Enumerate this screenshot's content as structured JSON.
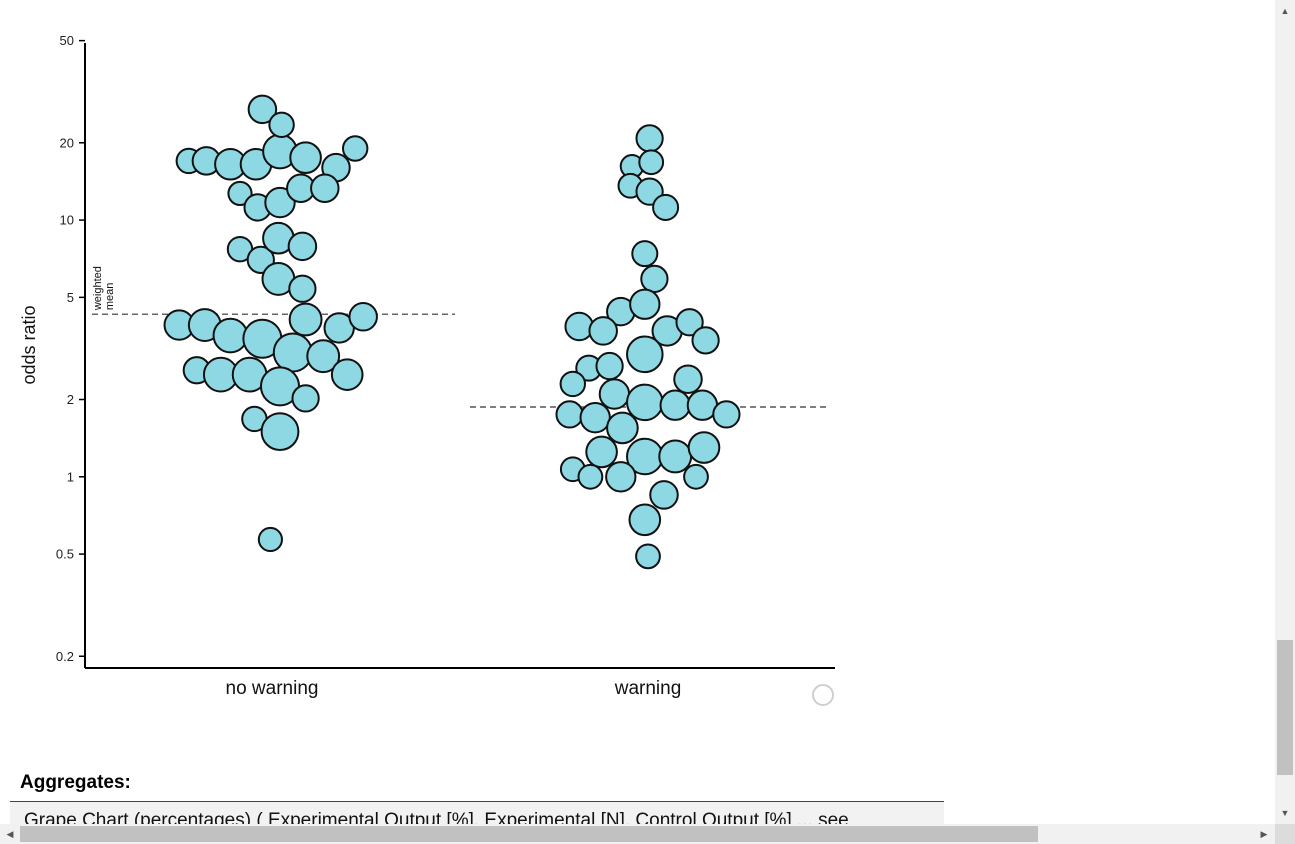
{
  "chart_data": {
    "type": "scatter",
    "subtype": "beeswarm",
    "title": "",
    "xlabel": "",
    "ylabel": "odds ratio",
    "y_scale": "log",
    "ylim": [
      0.18,
      55
    ],
    "y_ticks": [
      0.2,
      0.5,
      1,
      2,
      5,
      10,
      20,
      50
    ],
    "y_tick_labels": [
      "0.2",
      "0.5",
      "1",
      "2",
      "5",
      "10",
      "20",
      "50"
    ],
    "categories": [
      "no warning",
      "warning"
    ],
    "grid": false,
    "legend": "none",
    "point_color": "#8dd8e3",
    "point_stroke": "#111111",
    "weighted_mean_label": "weighted mean",
    "weighted_means": [
      4.3,
      1.87
    ],
    "points": [
      {
        "category": 0,
        "offset": -0.52,
        "y": 17.0,
        "weight": 2
      },
      {
        "category": 0,
        "offset": -0.41,
        "y": 17.0,
        "weight": 2.5
      },
      {
        "category": 0,
        "offset": -0.26,
        "y": 16.5,
        "weight": 3
      },
      {
        "category": 0,
        "offset": -0.1,
        "y": 16.5,
        "weight": 3
      },
      {
        "category": 0,
        "offset": 0.05,
        "y": 18.5,
        "weight": 3.5
      },
      {
        "category": 0,
        "offset": 0.21,
        "y": 17.5,
        "weight": 3
      },
      {
        "category": 0,
        "offset": 0.4,
        "y": 16.0,
        "weight": 2.5
      },
      {
        "category": 0,
        "offset": 0.52,
        "y": 19.0,
        "weight": 2
      },
      {
        "category": 0,
        "offset": -0.06,
        "y": 27.0,
        "weight": 2.5
      },
      {
        "category": 0,
        "offset": 0.06,
        "y": 23.5,
        "weight": 2
      },
      {
        "category": 0,
        "offset": -0.2,
        "y": 12.7,
        "weight": 1.8
      },
      {
        "category": 0,
        "offset": -0.09,
        "y": 11.2,
        "weight": 2.3
      },
      {
        "category": 0,
        "offset": 0.05,
        "y": 11.7,
        "weight": 2.8
      },
      {
        "category": 0,
        "offset": 0.18,
        "y": 13.3,
        "weight": 2.5
      },
      {
        "category": 0,
        "offset": 0.33,
        "y": 13.3,
        "weight": 2.5
      },
      {
        "category": 0,
        "offset": -0.2,
        "y": 7.7,
        "weight": 2
      },
      {
        "category": 0,
        "offset": -0.07,
        "y": 7.0,
        "weight": 2.3
      },
      {
        "category": 0,
        "offset": 0.04,
        "y": 8.5,
        "weight": 3
      },
      {
        "category": 0,
        "offset": 0.19,
        "y": 7.9,
        "weight": 2.5
      },
      {
        "category": 0,
        "offset": 0.04,
        "y": 5.9,
        "weight": 3.2
      },
      {
        "category": 0,
        "offset": 0.19,
        "y": 5.4,
        "weight": 2.3
      },
      {
        "category": 0,
        "offset": -0.58,
        "y": 3.9,
        "weight": 2.8
      },
      {
        "category": 0,
        "offset": -0.42,
        "y": 3.9,
        "weight": 3.2
      },
      {
        "category": 0,
        "offset": -0.26,
        "y": 3.55,
        "weight": 3.5
      },
      {
        "category": 0,
        "offset": -0.06,
        "y": 3.45,
        "weight": 4.2
      },
      {
        "category": 0,
        "offset": 0.21,
        "y": 4.1,
        "weight": 3.2
      },
      {
        "category": 0,
        "offset": 0.42,
        "y": 3.8,
        "weight": 2.8
      },
      {
        "category": 0,
        "offset": 0.57,
        "y": 4.2,
        "weight": 2.5
      },
      {
        "category": 0,
        "offset": 0.13,
        "y": 3.05,
        "weight": 4.2
      },
      {
        "category": 0,
        "offset": 0.32,
        "y": 2.95,
        "weight": 3.2
      },
      {
        "category": 0,
        "offset": -0.47,
        "y": 2.6,
        "weight": 2.3
      },
      {
        "category": 0,
        "offset": -0.32,
        "y": 2.5,
        "weight": 3.5
      },
      {
        "category": 0,
        "offset": -0.14,
        "y": 2.5,
        "weight": 3.5
      },
      {
        "category": 0,
        "offset": 0.05,
        "y": 2.25,
        "weight": 4.2
      },
      {
        "category": 0,
        "offset": 0.21,
        "y": 2.02,
        "weight": 2.3
      },
      {
        "category": 0,
        "offset": 0.47,
        "y": 2.5,
        "weight": 3
      },
      {
        "category": 0,
        "offset": -0.11,
        "y": 1.68,
        "weight": 2
      },
      {
        "category": 0,
        "offset": 0.05,
        "y": 1.5,
        "weight": 4
      },
      {
        "category": 0,
        "offset": -0.01,
        "y": 0.57,
        "weight": 1.8
      },
      {
        "category": 1,
        "offset": 0.01,
        "y": 20.8,
        "weight": 2.3
      },
      {
        "category": 1,
        "offset": -0.1,
        "y": 16.2,
        "weight": 1.7
      },
      {
        "category": 1,
        "offset": 0.02,
        "y": 16.8,
        "weight": 1.9
      },
      {
        "category": 1,
        "offset": -0.11,
        "y": 13.6,
        "weight": 1.9
      },
      {
        "category": 1,
        "offset": 0.01,
        "y": 12.9,
        "weight": 2.3
      },
      {
        "category": 1,
        "offset": 0.11,
        "y": 11.2,
        "weight": 2.1
      },
      {
        "category": 1,
        "offset": -0.02,
        "y": 7.4,
        "weight": 2.1
      },
      {
        "category": 1,
        "offset": 0.04,
        "y": 5.9,
        "weight": 2.3
      },
      {
        "category": 1,
        "offset": -0.17,
        "y": 4.4,
        "weight": 2.5
      },
      {
        "category": 1,
        "offset": -0.02,
        "y": 4.7,
        "weight": 2.8
      },
      {
        "category": 1,
        "offset": -0.43,
        "y": 3.85,
        "weight": 2.5
      },
      {
        "category": 1,
        "offset": -0.28,
        "y": 3.7,
        "weight": 2.5
      },
      {
        "category": 1,
        "offset": 0.12,
        "y": 3.7,
        "weight": 2.8
      },
      {
        "category": 1,
        "offset": 0.26,
        "y": 4.0,
        "weight": 2.3
      },
      {
        "category": 1,
        "offset": 0.36,
        "y": 3.4,
        "weight": 2.3
      },
      {
        "category": 1,
        "offset": -0.37,
        "y": 2.65,
        "weight": 2.1
      },
      {
        "category": 1,
        "offset": -0.24,
        "y": 2.7,
        "weight": 2.3
      },
      {
        "category": 1,
        "offset": -0.02,
        "y": 3.0,
        "weight": 3.8
      },
      {
        "category": 1,
        "offset": 0.25,
        "y": 2.4,
        "weight": 2.5
      },
      {
        "category": 1,
        "offset": -0.47,
        "y": 2.3,
        "weight": 2
      },
      {
        "category": 1,
        "offset": -0.21,
        "y": 2.1,
        "weight": 2.8
      },
      {
        "category": 1,
        "offset": -0.02,
        "y": 1.95,
        "weight": 3.8
      },
      {
        "category": 1,
        "offset": 0.17,
        "y": 1.9,
        "weight": 2.8
      },
      {
        "category": 1,
        "offset": 0.34,
        "y": 1.9,
        "weight": 2.8
      },
      {
        "category": 1,
        "offset": 0.49,
        "y": 1.75,
        "weight": 2.3
      },
      {
        "category": 1,
        "offset": -0.49,
        "y": 1.75,
        "weight": 2.3
      },
      {
        "category": 1,
        "offset": -0.33,
        "y": 1.7,
        "weight": 2.8
      },
      {
        "category": 1,
        "offset": -0.16,
        "y": 1.55,
        "weight": 3
      },
      {
        "category": 1,
        "offset": -0.29,
        "y": 1.25,
        "weight": 3
      },
      {
        "category": 1,
        "offset": -0.02,
        "y": 1.2,
        "weight": 3.8
      },
      {
        "category": 1,
        "offset": 0.17,
        "y": 1.2,
        "weight": 3.2
      },
      {
        "category": 1,
        "offset": 0.35,
        "y": 1.3,
        "weight": 3
      },
      {
        "category": 1,
        "offset": -0.47,
        "y": 1.07,
        "weight": 1.9
      },
      {
        "category": 1,
        "offset": -0.36,
        "y": 1.0,
        "weight": 1.9
      },
      {
        "category": 1,
        "offset": -0.17,
        "y": 1.0,
        "weight": 2.8
      },
      {
        "category": 1,
        "offset": 0.3,
        "y": 1.0,
        "weight": 1.9
      },
      {
        "category": 1,
        "offset": 0.1,
        "y": 0.85,
        "weight": 2.5
      },
      {
        "category": 1,
        "offset": -0.02,
        "y": 0.68,
        "weight": 3
      },
      {
        "category": 1,
        "offset": 0.0,
        "y": 0.49,
        "weight": 1.9
      }
    ]
  },
  "aggregates": {
    "heading": "Aggregates:",
    "row_text": "Grape Chart (percentages) ( Experimental Output [%], Experimental [N], Control Output [%] ... see"
  }
}
